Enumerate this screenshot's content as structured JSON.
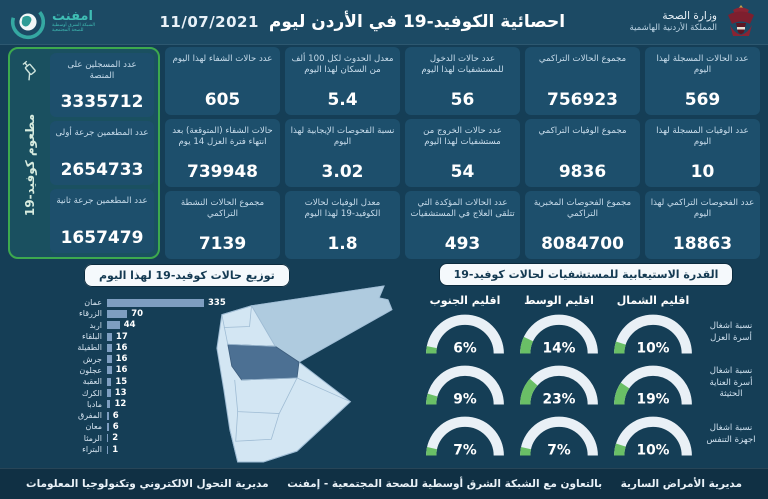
{
  "colors": {
    "page_bg": "#153E56",
    "header_bg": "#1C4A64",
    "card_bg": "#1D4F6C",
    "accent_green": "#3DA94E",
    "gauge_green": "#6ABF66",
    "gauge_track": "#E9F0F6",
    "bar_blue": "#7E9EC1",
    "badge_bg": "#F5F9FC",
    "emphnet_teal": "#3FBDB4",
    "map_light": "#D3E6F3",
    "map_amman": "#4C7093",
    "map_zarqa": "#AFCBDF"
  },
  "icons": {
    "syringe-icon": "syringe",
    "globe-icon": "globe with swoosh",
    "jordan-coat-of-arms-icon": "crown and shield emblem"
  },
  "header": {
    "title": "احصائية الكوفيد-19 في الأردن ليوم",
    "date": "11/07/2021",
    "ministry": "وزارة الصحة",
    "kingdom": "المملكة الأردنية الهاشمية",
    "emphnet_name": "امفنت",
    "emphnet_sub1": "الشبكة الشرق أوسطية",
    "emphnet_sub2": "للصحة المجتمعية"
  },
  "stats": {
    "columns": [
      {
        "cards": [
          {
            "label": "عدد الحالات المسجلة لهذا اليوم",
            "value": "569"
          },
          {
            "label": "عدد الوفيات المسجلة لهذا اليوم",
            "value": "10"
          },
          {
            "label": "عدد الفحوصات التراكمي لهذا اليوم",
            "value": "18863"
          }
        ]
      },
      {
        "cards": [
          {
            "label": "مجموع الحالات التراكمي",
            "value": "756923"
          },
          {
            "label": "مجموع الوفيات التراكمي",
            "value": "9836"
          },
          {
            "label": "مجموع الفحوصات المخبرية التراكمي",
            "value": "8084700"
          }
        ]
      },
      {
        "cards": [
          {
            "label": "عدد حالات الدخول للمستشفيات لهذا اليوم",
            "value": "56"
          },
          {
            "label": "عدد حالات الخروج من مستشفيات لهذا اليوم",
            "value": "54"
          },
          {
            "label": "عدد الحالات المؤكدة التي تتلقى العلاج في المستشفيات",
            "value": "493"
          }
        ]
      },
      {
        "cards": [
          {
            "label": "معدل الحدوث لكل 100 ألف من السكان لهذا اليوم",
            "value": "5.4"
          },
          {
            "label": "نسبة الفحوصات الإيجابية لهذا اليوم",
            "value": "3.02"
          },
          {
            "label": "معدل الوفيات لحالات الكوفيد-19 لهذا اليوم",
            "value": "1.8"
          }
        ]
      },
      {
        "cards": [
          {
            "label": "عدد حالات الشفاء لهذا اليوم",
            "value": "605"
          },
          {
            "label": "حالات الشفاء (المتوقعة) بعد انتهاء فترة العزل 14 يوم",
            "value": "739948"
          },
          {
            "label": "مجموع الحالات النشطة التراكمي",
            "value": "7139"
          }
        ]
      }
    ]
  },
  "vaccine": {
    "vertical_label": "مطعوم كوفيد-19",
    "cards": [
      {
        "label": "عدد المسجلين على المنصة",
        "value": "3335712"
      },
      {
        "label": "عدد المطعمين جرعة أولى",
        "value": "2654733"
      },
      {
        "label": "عدد المطعمين جرعة ثانية",
        "value": "1657479"
      }
    ]
  },
  "chart_data": [
    {
      "type": "bar",
      "orientation": "horizontal",
      "title": "توزيع حالات كوفيد-19 لهذا اليوم",
      "categories": [
        "عمان",
        "الزرقاء",
        "اربد",
        "البلقاء",
        "الطفيلة",
        "جرش",
        "عجلون",
        "العقبة",
        "الكرك",
        "مادبا",
        "المفرق",
        "معان",
        "الرمثا",
        "البتراء"
      ],
      "values": [
        335,
        70,
        44,
        17,
        16,
        16,
        16,
        15,
        13,
        12,
        6,
        6,
        2,
        1
      ],
      "xlim": [
        0,
        335
      ],
      "grid": false,
      "legend": false
    },
    {
      "type": "gauge",
      "title": "القدرة الاستيعابية للمستشفيات لحالات كوفيد-19",
      "regions": [
        "اقليم الشمال",
        "اقليم الوسط",
        "اقليم الجنوب"
      ],
      "rows": [
        {
          "label": "نسبة اشغال أسرة العزل",
          "values": [
            10,
            14,
            6
          ]
        },
        {
          "label": "نسبة اشغال أسرة العناية الحثيثة",
          "values": [
            19,
            23,
            9
          ]
        },
        {
          "label": "نسبة اشغال اجهزة التنفس",
          "values": [
            10,
            7,
            7
          ]
        }
      ],
      "unit": "%",
      "range": [
        0,
        100
      ]
    }
  ],
  "footer": {
    "right": "مديرية الأمراض السارية",
    "center": "بالتعاون مع الشبكة الشرق أوسطية للصحة المجتمعية - إمفنت",
    "left": "مديرية التحول الالكتروني وتكنولوجيا المعلومات"
  }
}
